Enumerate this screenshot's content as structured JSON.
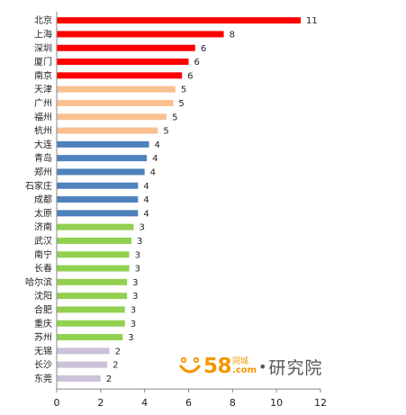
{
  "chart_data": {
    "type": "bar",
    "orientation": "horizontal",
    "categories": [
      "北京",
      "上海",
      "深圳",
      "厦门",
      "南京",
      "天津",
      "广州",
      "福州",
      "杭州",
      "大连",
      "青岛",
      "郑州",
      "石家庄",
      "成都",
      "太原",
      "济南",
      "武汉",
      "南宁",
      "长春",
      "哈尔滨",
      "沈阳",
      "合肥",
      "重庆",
      "苏州",
      "无锡",
      "长沙",
      "东莞"
    ],
    "values": [
      11.1,
      7.6,
      6.3,
      6.0,
      5.7,
      5.4,
      5.3,
      5.0,
      4.6,
      4.2,
      4.1,
      4.0,
      3.7,
      3.7,
      3.7,
      3.5,
      3.4,
      3.3,
      3.3,
      3.2,
      3.2,
      3.1,
      3.1,
      3.0,
      2.4,
      2.3,
      2.0
    ],
    "data_labels": [
      "11",
      "8",
      "6",
      "6",
      "6",
      "5",
      "5",
      "5",
      "5",
      "4",
      "4",
      "4",
      "4",
      "4",
      "4",
      "3",
      "3",
      "3",
      "3",
      "3",
      "3",
      "3",
      "3",
      "3",
      "2",
      "2",
      "2"
    ],
    "colors": [
      "#ff0000",
      "#ff0000",
      "#ff0000",
      "#ff0000",
      "#ff0000",
      "#fac090",
      "#fac090",
      "#fac090",
      "#fac090",
      "#4f81bd",
      "#4f81bd",
      "#4f81bd",
      "#4f81bd",
      "#4f81bd",
      "#4f81bd",
      "#92d050",
      "#92d050",
      "#92d050",
      "#92d050",
      "#92d050",
      "#92d050",
      "#92d050",
      "#92d050",
      "#92d050",
      "#ccc1da",
      "#ccc1da",
      "#ccc1da"
    ],
    "xlim": [
      0,
      12
    ],
    "xticks": [
      "0",
      "2",
      "4",
      "6",
      "8",
      "10",
      "12"
    ],
    "title": "",
    "xlabel": "",
    "ylabel": "",
    "grid": false,
    "legend": "none"
  },
  "logo": {
    "number": "58",
    "tongcheng": "同城",
    "com": ".com",
    "dot": "•",
    "institute": "研究院"
  }
}
